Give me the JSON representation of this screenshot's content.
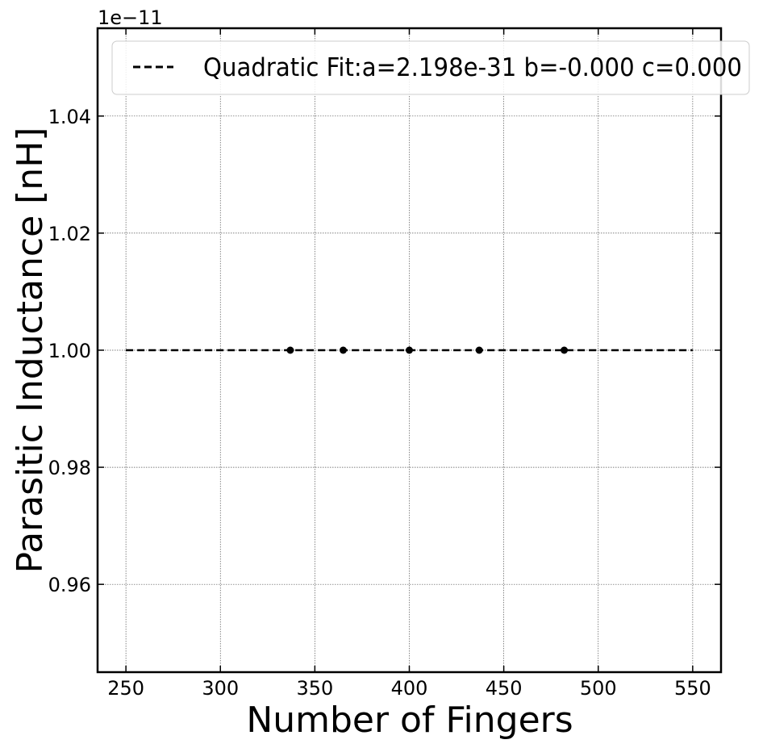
{
  "chart_data": {
    "type": "scatter",
    "xlabel": "Number of Fingers",
    "ylabel": "Parasitic Inductance [nH]",
    "offset_label": "1e−11",
    "xlim": [
      235,
      565
    ],
    "ylim": [
      0.945,
      1.055
    ],
    "x_ticks": [
      250,
      300,
      350,
      400,
      450,
      500,
      550
    ],
    "x_tick_labels": [
      "250",
      "300",
      "350",
      "400",
      "450",
      "500",
      "550"
    ],
    "y_ticks": [
      0.96,
      0.98,
      1.0,
      1.02,
      1.04
    ],
    "y_tick_labels": [
      "0.96",
      "0.98",
      "1.00",
      "1.02",
      "1.04"
    ],
    "grid": true,
    "legend_position": "top-right",
    "points": {
      "x": [
        337,
        365,
        400,
        437,
        482
      ],
      "y": [
        1.0,
        1.0,
        1.0,
        1.0,
        1.0
      ],
      "color": "#000000"
    },
    "fit_line": {
      "name": "Quadratic Fit:a=2.198e-31 b=-0.000 c=0.000",
      "style": "dashed",
      "color": "#000000",
      "x": [
        250,
        550
      ],
      "y": [
        1.0,
        1.0
      ]
    }
  }
}
